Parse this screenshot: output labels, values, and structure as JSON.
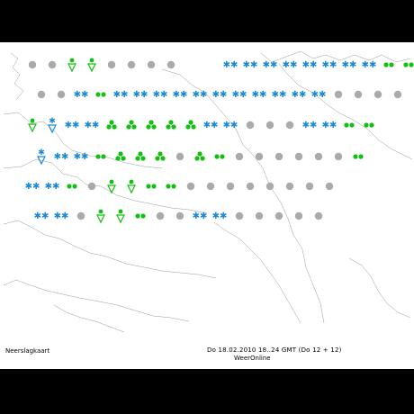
{
  "map": {
    "title": "Neerslagkaart",
    "timestamp": "Do 18.02.2010  18..24 GMT  (Do 12 + 12)",
    "source": "WeerOnline"
  },
  "symbols": [
    {
      "type": "dot-gray",
      "row": 0,
      "col": 0
    },
    {
      "type": "dot-gray",
      "row": 0,
      "col": 1
    },
    {
      "type": "shower-green",
      "row": 0,
      "col": 2
    },
    {
      "type": "shower-green",
      "row": 0,
      "col": 3
    },
    {
      "type": "dot-gray",
      "row": 0,
      "col": 4
    },
    {
      "type": "dot-gray",
      "row": 0,
      "col": 5
    },
    {
      "type": "dot-gray",
      "row": 0,
      "col": 6
    },
    {
      "type": "dot-gray",
      "row": 0,
      "col": 7
    },
    {
      "type": "snow-blue",
      "row": 0,
      "col": 10
    },
    {
      "type": "snow-blue",
      "row": 0,
      "col": 11
    },
    {
      "type": "snow-blue",
      "row": 0,
      "col": 12
    },
    {
      "type": "snow-blue",
      "row": 0,
      "col": 13
    },
    {
      "type": "snow-blue",
      "row": 0,
      "col": 14
    },
    {
      "type": "snow-blue",
      "row": 0,
      "col": 15
    },
    {
      "type": "snow-blue",
      "row": 0,
      "col": 16
    },
    {
      "type": "snow-blue",
      "row": 0,
      "col": 17
    },
    {
      "type": "rain-green",
      "row": 0,
      "col": 18
    },
    {
      "type": "rain-green",
      "row": 0,
      "col": 19
    },
    {
      "type": "dot-gray",
      "row": 1,
      "col": 0
    },
    {
      "type": "dot-gray",
      "row": 1,
      "col": 1
    },
    {
      "type": "snow-blue",
      "row": 1,
      "col": 2
    },
    {
      "type": "rain-green",
      "row": 1,
      "col": 3
    },
    {
      "type": "snow-blue",
      "row": 1,
      "col": 4
    },
    {
      "type": "snow-blue",
      "row": 1,
      "col": 5
    },
    {
      "type": "snow-blue",
      "row": 1,
      "col": 6
    },
    {
      "type": "snow-blue",
      "row": 1,
      "col": 7
    },
    {
      "type": "snow-blue",
      "row": 1,
      "col": 8
    },
    {
      "type": "snow-blue",
      "row": 1,
      "col": 9
    },
    {
      "type": "snow-blue",
      "row": 1,
      "col": 10
    },
    {
      "type": "snow-blue",
      "row": 1,
      "col": 11
    },
    {
      "type": "snow-blue",
      "row": 1,
      "col": 12
    },
    {
      "type": "snow-blue",
      "row": 1,
      "col": 13
    },
    {
      "type": "snow-blue",
      "row": 1,
      "col": 14
    },
    {
      "type": "dot-gray",
      "row": 1,
      "col": 15
    },
    {
      "type": "dot-gray",
      "row": 1,
      "col": 16
    },
    {
      "type": "dot-gray",
      "row": 1,
      "col": 17
    },
    {
      "type": "dot-gray",
      "row": 1,
      "col": 18
    },
    {
      "type": "shower-green",
      "row": 2,
      "col": 0
    },
    {
      "type": "shower-blue",
      "row": 2,
      "col": 1
    },
    {
      "type": "snow-blue",
      "row": 2,
      "col": 2
    },
    {
      "type": "snow-blue",
      "row": 2,
      "col": 3
    },
    {
      "type": "heavy-green",
      "row": 2,
      "col": 4
    },
    {
      "type": "heavy-green",
      "row": 2,
      "col": 5
    },
    {
      "type": "heavy-green",
      "row": 2,
      "col": 6
    },
    {
      "type": "heavy-green",
      "row": 2,
      "col": 7
    },
    {
      "type": "heavy-green",
      "row": 2,
      "col": 8
    },
    {
      "type": "snow-blue",
      "row": 2,
      "col": 9
    },
    {
      "type": "snow-blue",
      "row": 2,
      "col": 10
    },
    {
      "type": "dot-gray",
      "row": 2,
      "col": 11
    },
    {
      "type": "dot-gray",
      "row": 2,
      "col": 12
    },
    {
      "type": "dot-gray",
      "row": 2,
      "col": 13
    },
    {
      "type": "snow-blue",
      "row": 2,
      "col": 14
    },
    {
      "type": "snow-blue",
      "row": 2,
      "col": 15
    },
    {
      "type": "rain-green",
      "row": 2,
      "col": 16
    },
    {
      "type": "rain-green",
      "row": 2,
      "col": 17
    },
    {
      "type": "shower-blue",
      "row": 3,
      "col": 0
    },
    {
      "type": "snow-blue",
      "row": 3,
      "col": 1
    },
    {
      "type": "snow-blue",
      "row": 3,
      "col": 2
    },
    {
      "type": "rain-green",
      "row": 3,
      "col": 3
    },
    {
      "type": "heavy-green",
      "row": 3,
      "col": 4
    },
    {
      "type": "heavy-green",
      "row": 3,
      "col": 5
    },
    {
      "type": "heavy-green",
      "row": 3,
      "col": 6
    },
    {
      "type": "dot-gray",
      "row": 3,
      "col": 7
    },
    {
      "type": "heavy-green",
      "row": 3,
      "col": 8
    },
    {
      "type": "rain-green",
      "row": 3,
      "col": 9
    },
    {
      "type": "dot-gray",
      "row": 3,
      "col": 10
    },
    {
      "type": "dot-gray",
      "row": 3,
      "col": 11
    },
    {
      "type": "dot-gray",
      "row": 3,
      "col": 12
    },
    {
      "type": "dot-gray",
      "row": 3,
      "col": 13
    },
    {
      "type": "dot-gray",
      "row": 3,
      "col": 14
    },
    {
      "type": "dot-gray",
      "row": 3,
      "col": 15
    },
    {
      "type": "rain-green",
      "row": 3,
      "col": 16
    },
    {
      "type": "snow-blue",
      "row": 4,
      "col": 0
    },
    {
      "type": "snow-blue",
      "row": 4,
      "col": 1
    },
    {
      "type": "rain-green",
      "row": 4,
      "col": 2
    },
    {
      "type": "dot-gray",
      "row": 4,
      "col": 3
    },
    {
      "type": "shower-green",
      "row": 4,
      "col": 4
    },
    {
      "type": "shower-green",
      "row": 4,
      "col": 5
    },
    {
      "type": "rain-green",
      "row": 4,
      "col": 6
    },
    {
      "type": "rain-green",
      "row": 4,
      "col": 7
    },
    {
      "type": "dot-gray",
      "row": 4,
      "col": 8
    },
    {
      "type": "dot-gray",
      "row": 4,
      "col": 9
    },
    {
      "type": "dot-gray",
      "row": 4,
      "col": 10
    },
    {
      "type": "dot-gray",
      "row": 4,
      "col": 11
    },
    {
      "type": "dot-gray",
      "row": 4,
      "col": 12
    },
    {
      "type": "dot-gray",
      "row": 4,
      "col": 13
    },
    {
      "type": "dot-gray",
      "row": 4,
      "col": 14
    },
    {
      "type": "dot-gray",
      "row": 4,
      "col": 15
    },
    {
      "type": "snow-blue",
      "row": 5,
      "col": 0
    },
    {
      "type": "snow-blue",
      "row": 5,
      "col": 1
    },
    {
      "type": "dot-gray",
      "row": 5,
      "col": 2
    },
    {
      "type": "shower-green",
      "row": 5,
      "col": 3
    },
    {
      "type": "shower-green",
      "row": 5,
      "col": 4
    },
    {
      "type": "rain-green",
      "row": 5,
      "col": 5
    },
    {
      "type": "dot-gray",
      "row": 5,
      "col": 6
    },
    {
      "type": "dot-gray",
      "row": 5,
      "col": 7
    },
    {
      "type": "snow-blue",
      "row": 5,
      "col": 8
    },
    {
      "type": "snow-blue",
      "row": 5,
      "col": 9
    },
    {
      "type": "dot-gray",
      "row": 5,
      "col": 10
    },
    {
      "type": "dot-gray",
      "row": 5,
      "col": 11
    },
    {
      "type": "dot-gray",
      "row": 5,
      "col": 12
    },
    {
      "type": "dot-gray",
      "row": 5,
      "col": 13
    },
    {
      "type": "dot-gray",
      "row": 5,
      "col": 14
    }
  ]
}
